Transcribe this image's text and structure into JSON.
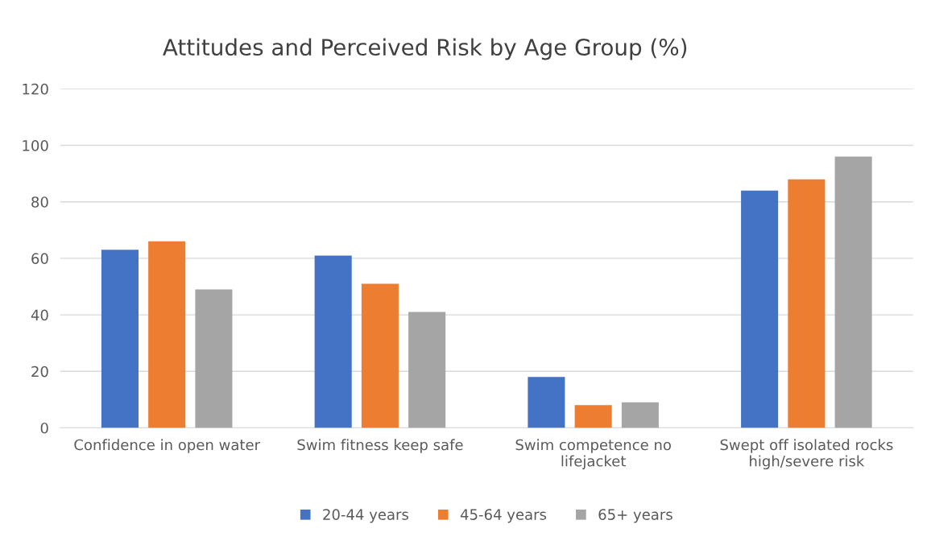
{
  "chart_data": {
    "type": "bar",
    "title": "Attitudes and Perceived Risk by Age Group (%)",
    "categories": [
      "Confidence in open water",
      "Swim fitness keep safe",
      "Swim competence no lifejacket",
      "Swept off isolated rocks high/severe risk"
    ],
    "series": [
      {
        "name": "20-44 years",
        "color": "#4472c4",
        "values": [
          63,
          61,
          18,
          84
        ]
      },
      {
        "name": "45-64 years",
        "color": "#ed7d31",
        "values": [
          66,
          51,
          8,
          88
        ]
      },
      {
        "name": "65+ years",
        "color": "#a5a5a5",
        "values": [
          49,
          41,
          9,
          96
        ]
      }
    ],
    "ylim": [
      0,
      120
    ],
    "yticks": [
      0,
      20,
      40,
      60,
      80,
      100,
      120
    ],
    "grid": "y",
    "legend": "bottom"
  }
}
